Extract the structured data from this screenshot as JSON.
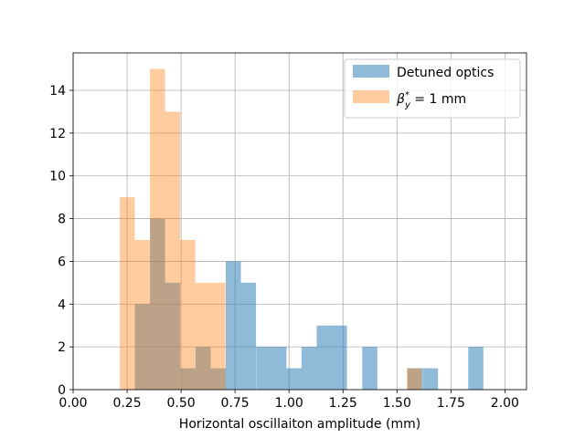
{
  "chart_data": {
    "type": "bar",
    "title": "",
    "xlabel": "Horizontal oscillaiton amplitude (mm)",
    "ylabel": "",
    "xlim": [
      0.0,
      2.1
    ],
    "ylim": [
      0,
      15.75
    ],
    "xticks": [
      "0.00",
      "0.25",
      "0.50",
      "0.75",
      "1.00",
      "1.25",
      "1.50",
      "1.75",
      "2.00"
    ],
    "yticks": [
      "0",
      "2",
      "4",
      "6",
      "8",
      "10",
      "12",
      "14"
    ],
    "grid": true,
    "legend_position": "top-right",
    "series": [
      {
        "name": "Detuned optics",
        "color": "#1f77b4",
        "opacity": 0.5,
        "bin_width": 0.0702,
        "bins": [
          {
            "x0": 0.286,
            "count": 4
          },
          {
            "x0": 0.356,
            "count": 8
          },
          {
            "x0": 0.426,
            "count": 5
          },
          {
            "x0": 0.497,
            "count": 1
          },
          {
            "x0": 0.567,
            "count": 2
          },
          {
            "x0": 0.637,
            "count": 1
          },
          {
            "x0": 0.707,
            "count": 6
          },
          {
            "x0": 0.777,
            "count": 5
          },
          {
            "x0": 0.848,
            "count": 2
          },
          {
            "x0": 0.918,
            "count": 2
          },
          {
            "x0": 0.988,
            "count": 1
          },
          {
            "x0": 1.058,
            "count": 2
          },
          {
            "x0": 1.128,
            "count": 3
          },
          {
            "x0": 1.198,
            "count": 3
          },
          {
            "x0": 1.339,
            "count": 2
          },
          {
            "x0": 1.549,
            "count": 1
          },
          {
            "x0": 1.62,
            "count": 1
          },
          {
            "x0": 1.83,
            "count": 2
          }
        ]
      },
      {
        "name": "β*ᵧ = 1 mm",
        "color": "#ff7f0e",
        "opacity": 0.4,
        "bin_width": 0.0699,
        "bins": [
          {
            "x0": 0.216,
            "count": 9
          },
          {
            "x0": 0.286,
            "count": 7
          },
          {
            "x0": 0.356,
            "count": 15
          },
          {
            "x0": 0.426,
            "count": 13
          },
          {
            "x0": 0.496,
            "count": 7
          },
          {
            "x0": 0.566,
            "count": 5
          },
          {
            "x0": 0.636,
            "count": 5
          },
          {
            "x0": 1.545,
            "count": 1
          }
        ]
      }
    ],
    "legend": {
      "entries": [
        {
          "label": "Detuned optics",
          "color": "#1f77b4",
          "opacity": 0.5,
          "math": false
        },
        {
          "label_base": "β",
          "label_sup": "*",
          "label_sub": "y",
          "label_rest": " = 1 mm",
          "color": "#ff7f0e",
          "opacity": 0.4,
          "math": true
        }
      ]
    }
  }
}
